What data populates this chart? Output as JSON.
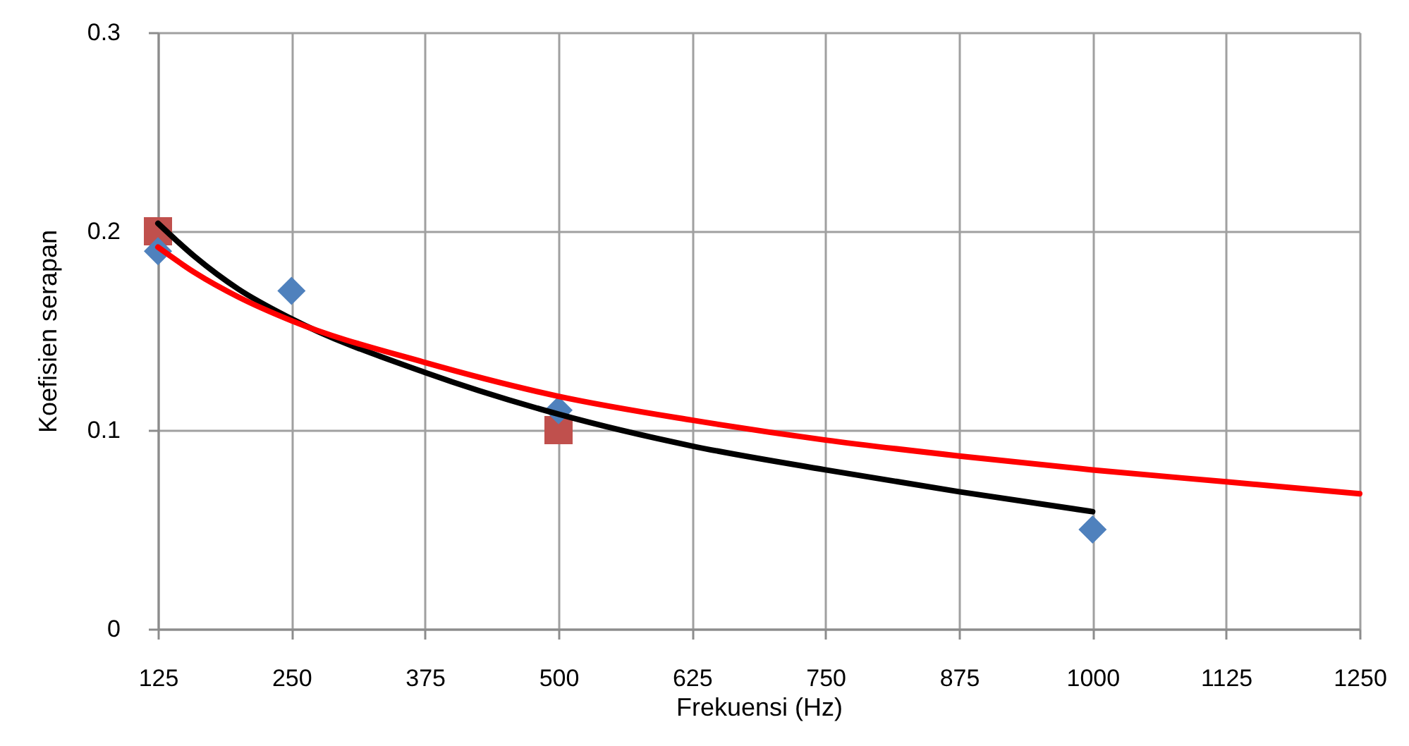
{
  "chart_data": {
    "type": "scatter",
    "xlabel": "Frekuensi (Hz)",
    "ylabel": "Koefisien serapan",
    "xlim": [
      125,
      1250
    ],
    "xticks": [
      125,
      250,
      375,
      500,
      625,
      750,
      875,
      1000,
      1125,
      1250
    ],
    "ylim": [
      0,
      0.3
    ],
    "yticks": [
      0,
      0.1,
      0.2,
      0.3
    ],
    "grid": true,
    "series": [
      {
        "marker": "square",
        "color": "#c0504d",
        "x": [
          125,
          500
        ],
        "values": [
          0.2,
          0.1
        ]
      },
      {
        "marker": "diamond",
        "color": "#4f81bd",
        "x": [
          125,
          250,
          500,
          1000
        ],
        "values": [
          0.19,
          0.17,
          0.11,
          0.05
        ]
      },
      {
        "type": "line",
        "color": "#000000",
        "x": [
          125,
          160,
          200,
          250,
          375,
          500,
          625,
          750,
          875,
          1000
        ],
        "values": [
          0.204,
          0.187,
          0.171,
          0.156,
          0.129,
          0.108,
          0.092,
          0.08,
          0.069,
          0.059
        ]
      },
      {
        "type": "line",
        "color": "#ff0000",
        "x": [
          125,
          160,
          200,
          250,
          375,
          500,
          625,
          750,
          875,
          1000,
          1125,
          1250
        ],
        "values": [
          0.192,
          0.179,
          0.167,
          0.155,
          0.134,
          0.117,
          0.105,
          0.095,
          0.087,
          0.08,
          0.074,
          0.068
        ]
      }
    ]
  }
}
